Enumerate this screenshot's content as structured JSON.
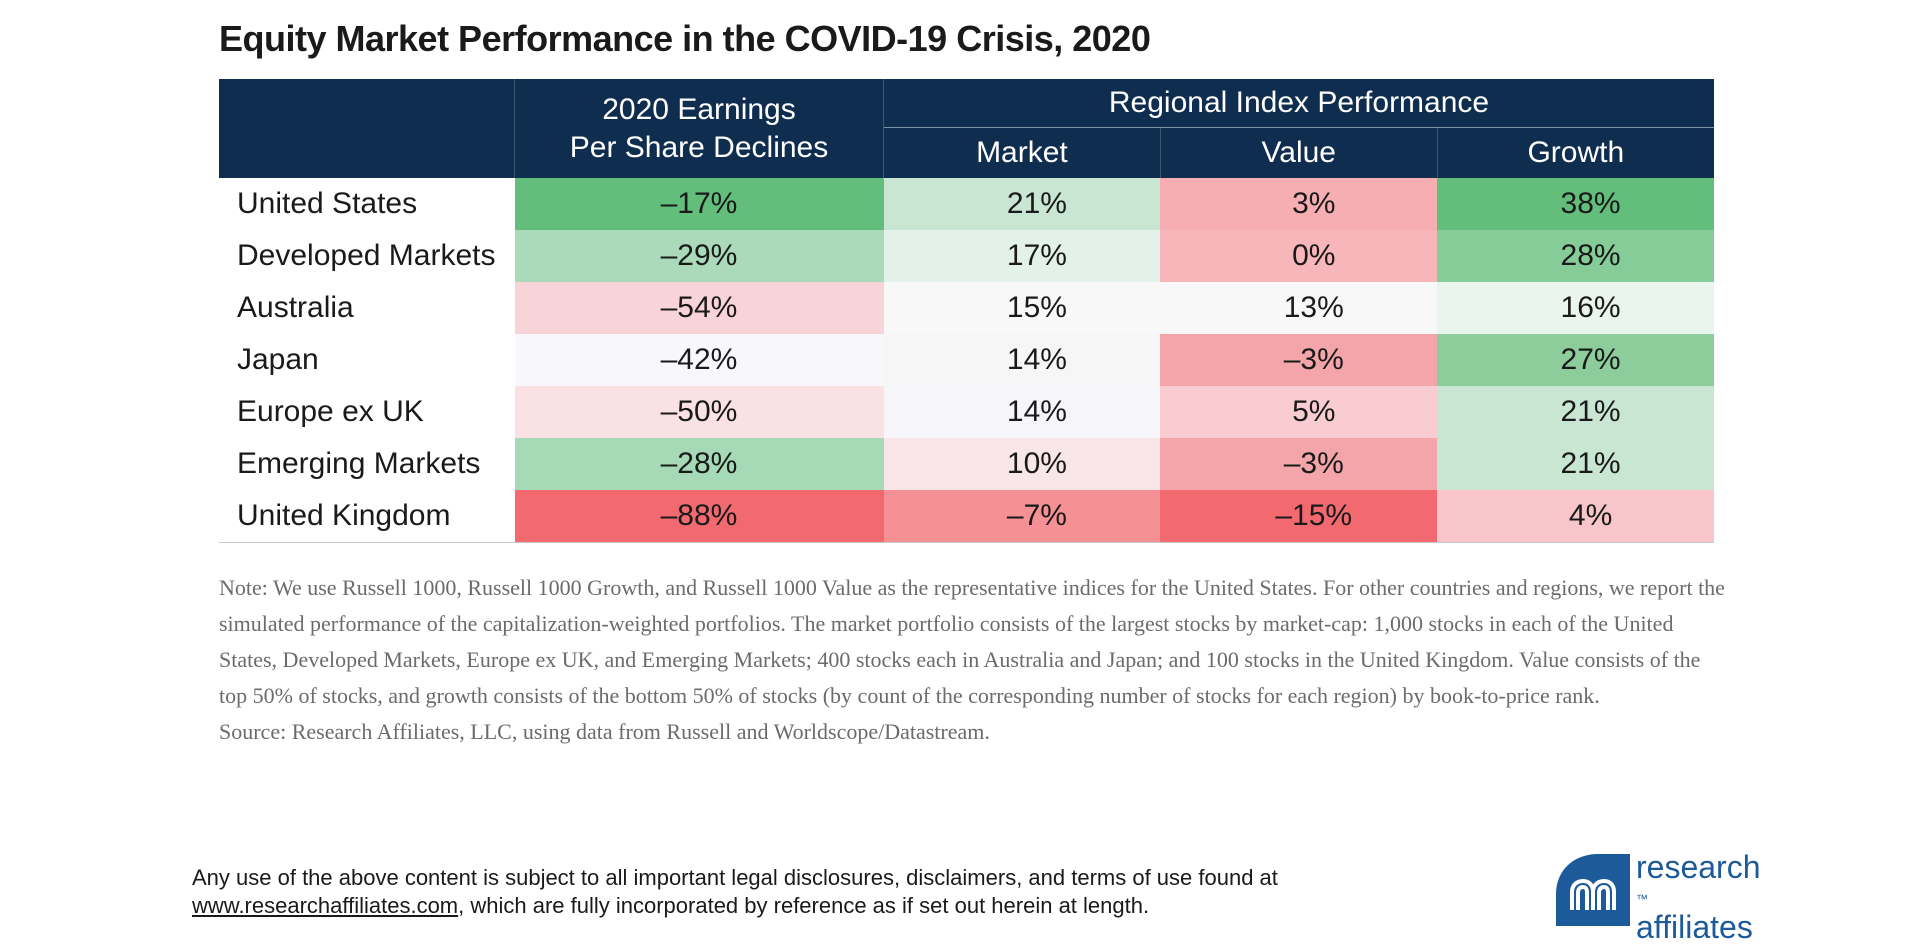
{
  "title": "Equity Market Performance in the COVID-19 Crisis, 2020",
  "chart_data": {
    "type": "table",
    "title": "Equity Market Performance in the COVID-19 Crisis, 2020",
    "header": {
      "eps_line1": "2020 Earnings",
      "eps_line2": "Per Share Declines",
      "group": "Regional Index Performance",
      "columns": [
        "Market",
        "Value",
        "Growth"
      ]
    },
    "rows": [
      {
        "region": "United States",
        "eps": "–17%",
        "market": "21%",
        "value": "3%",
        "growth": "38%"
      },
      {
        "region": "Developed Markets",
        "eps": "–29%",
        "market": "17%",
        "value": "0%",
        "growth": "28%"
      },
      {
        "region": "Australia",
        "eps": "–54%",
        "market": "15%",
        "value": "13%",
        "growth": "16%"
      },
      {
        "region": "Japan",
        "eps": "–42%",
        "market": "14%",
        "value": "–3%",
        "growth": "27%"
      },
      {
        "region": "Europe ex UK",
        "eps": "–50%",
        "market": "14%",
        "value": "5%",
        "growth": "21%"
      },
      {
        "region": "Emerging Markets",
        "eps": "–28%",
        "market": "10%",
        "value": "–3%",
        "growth": "21%"
      },
      {
        "region": "United Kingdom",
        "eps": "–88%",
        "market": "–7%",
        "value": "–15%",
        "growth": "4%"
      }
    ],
    "cell_colors": [
      [
        "#63be7b",
        "#c8e6d2",
        "#f6aeb3",
        "#63be7b"
      ],
      [
        "#aadab9",
        "#e3f2e8",
        "#f7b6ba",
        "#86cc98"
      ],
      [
        "#f8d4d8",
        "#f8f8f8",
        "#f8f8f8",
        "#e9f5ed"
      ],
      [
        "#f8f8fc",
        "#f5f6f5",
        "#f4a5aa",
        "#8ccd9b"
      ],
      [
        "#f9e1e4",
        "#f6f5f9",
        "#f8ccd0",
        "#c8e6d2"
      ],
      [
        "#a6d9b5",
        "#f9e6e8",
        "#f4a5aa",
        "#c8e6d2"
      ],
      [
        "#f26a6f",
        "#f59094",
        "#f26a6f",
        "#f8c6ca"
      ]
    ]
  },
  "note": {
    "text": "Note: We use Russell 1000, Russell 1000 Growth, and Russell 1000 Value as the representative indices for the United States. For other countries and regions, we report the simulated performance of the capitalization-weighted portfolios. The market portfolio consists of the largest stocks by market-cap: 1,000 stocks in each of the United States, Developed Markets, Europe ex UK, and Emerging Markets; 400 stocks each in Australia and Japan; and 100 stocks in the United Kingdom. Value consists of the top 50% of stocks, and growth consists of the bottom 50% of stocks (by count of the corresponding number of stocks for each region) by book-to-price rank.",
    "source": "Source: Research Affiliates, LLC, using data from Russell and Worldscope/Datastream."
  },
  "disclaimer": {
    "line1": "Any use of the above content is subject to all important legal disclosures, disclaimers, and terms of use found at",
    "link": "www.researchaffiliates.com",
    "line2_rest": ", which are fully incorporated by reference as if set out herein at length."
  },
  "logo": {
    "word1": "research",
    "word2": "affiliates",
    "tm": "™",
    "color": "#1d5a99",
    "icon": "research-affiliates-logo-icon"
  }
}
